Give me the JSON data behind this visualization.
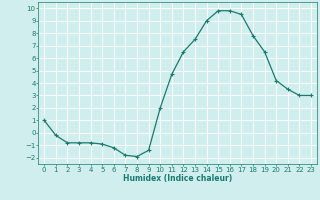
{
  "x": [
    0,
    1,
    2,
    3,
    4,
    5,
    6,
    7,
    8,
    9,
    10,
    11,
    12,
    13,
    14,
    15,
    16,
    17,
    18,
    19,
    20,
    21,
    22,
    23
  ],
  "y": [
    1,
    -0.2,
    -0.8,
    -0.8,
    -0.8,
    -0.9,
    -1.2,
    -1.8,
    -1.9,
    -1.4,
    2.0,
    4.7,
    6.5,
    7.5,
    9.0,
    9.8,
    9.8,
    9.5,
    7.8,
    6.5,
    4.2,
    3.5,
    3.0,
    3.0
  ],
  "line_color": "#1a7a6e",
  "marker": "+",
  "markersize": 3,
  "linewidth": 0.9,
  "bg_color": "#d0eeee",
  "grid_color": "#b8d8d8",
  "xlabel": "Humidex (Indice chaleur)",
  "xlim": [
    -0.5,
    23.5
  ],
  "ylim": [
    -2.5,
    10.5
  ],
  "xticks": [
    0,
    1,
    2,
    3,
    4,
    5,
    6,
    7,
    8,
    9,
    10,
    11,
    12,
    13,
    14,
    15,
    16,
    17,
    18,
    19,
    20,
    21,
    22,
    23
  ],
  "yticks": [
    -2,
    -1,
    0,
    1,
    2,
    3,
    4,
    5,
    6,
    7,
    8,
    9,
    10
  ],
  "xlabel_fontsize": 5.5,
  "tick_fontsize": 5
}
